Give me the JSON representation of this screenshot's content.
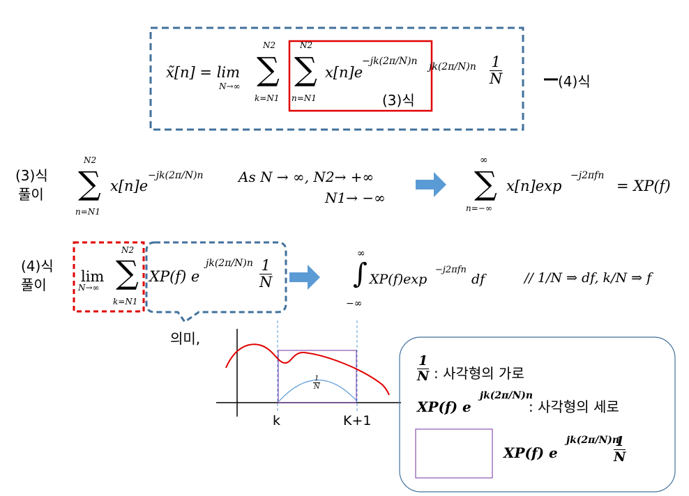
{
  "top": {
    "eq_lhs": "x̃[n] = lim",
    "lim_sub": "N→∞",
    "sum_sym": "∑",
    "sum_top": "N2",
    "sum_bottom": "k=N1",
    "inner_top": "N2",
    "inner_bottom": "n=N1",
    "inner_term": "x[n]e",
    "inner_exp": "−jk(2π/N)n",
    "outer_exp": "jk(2π/N)n",
    "frac_num": "1",
    "frac_den": "N",
    "eq_label": "(3)식",
    "side_label": "(4)식"
  },
  "row3": {
    "label_line1": "(3)식",
    "label_line2": "풀이",
    "term": "x[n]e",
    "exp": "−jk(2π/N)n",
    "cond1": "As N → ∞,  N2→ +∞",
    "cond2": "N1→ −∞",
    "result_top": "∞",
    "result_bottom": "n=−∞",
    "result_term": "x[n]exp",
    "result_exp": "−j2πfn",
    "result_rhs": "= XP(f)"
  },
  "row4": {
    "label_line1": "(4)식",
    "label_line2": "풀이",
    "lim_sub": "N→∞",
    "term": "XP(f)  e",
    "exp": "jk(2π/N)n",
    "integral_top": "∞",
    "integral_bottom": "−∞",
    "integral_term": "XP(f)exp",
    "integral_exp": "−j2πfn",
    "integral_tail": "df",
    "note": "// 1/N ⇒ df,  k/N ⇒ f"
  },
  "meaning": {
    "label": "의미,",
    "k_label": "k",
    "k1_label": "K+1",
    "arc_label_num": "1",
    "arc_label_den": "N"
  },
  "legend": {
    "line1_label": ": 사각형의 가로",
    "line2_term": "XP(f)  e",
    "line2_exp": "jk(2π/N)n",
    "line2_label": ": 사각형의 세로",
    "line3_term": "XP(f)  e",
    "line3_exp": "jk(2π/N)n"
  },
  "colors": {
    "dash_blue": "#41719c",
    "red": "#e00000",
    "arrow_blue": "#5b9bd5",
    "purple": "#7030a0",
    "curve_blue": "#5b9bd5"
  }
}
